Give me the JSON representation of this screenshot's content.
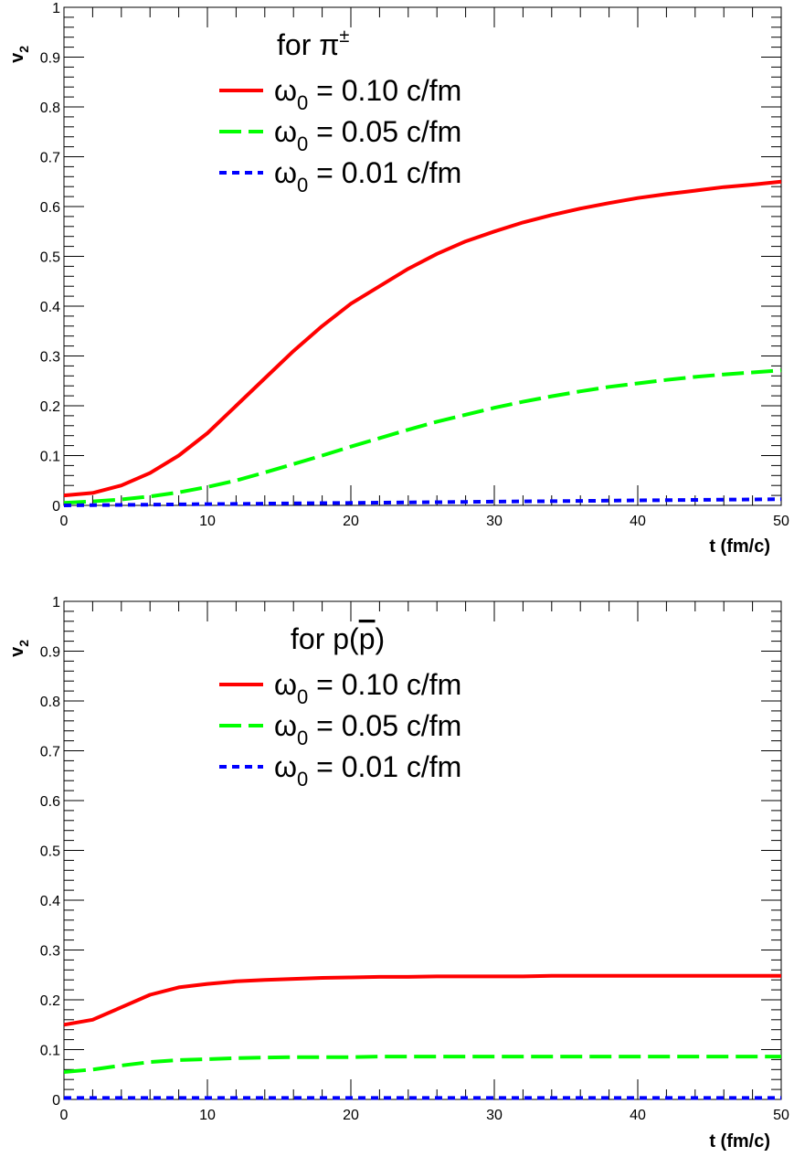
{
  "chart_data": [
    {
      "type": "line",
      "title": "",
      "xlabel": "t (fm/c)",
      "ylabel": "v",
      "ylabel_sub": "2",
      "xlim": [
        0,
        50
      ],
      "ylim": [
        0,
        1
      ],
      "x_ticks": [
        "0",
        "10",
        "20",
        "30",
        "40",
        "50"
      ],
      "y_ticks": [
        "0",
        "0.1",
        "0.2",
        "0.3",
        "0.4",
        "0.5",
        "0.6",
        "0.7",
        "0.8",
        "0.9",
        "1"
      ],
      "grid": false,
      "legend": {
        "header": "for π",
        "header_sup": "±",
        "header_bar": "",
        "position": "top-center"
      },
      "x": [
        0,
        2,
        4,
        6,
        8,
        10,
        12,
        14,
        16,
        18,
        20,
        22,
        24,
        26,
        28,
        30,
        32,
        34,
        36,
        38,
        40,
        42,
        44,
        46,
        48,
        50
      ],
      "series": [
        {
          "symbol": "ω",
          "sub": "0",
          "value_text": " = 0.10 c/fm",
          "color": "#ff0000",
          "style": "solid",
          "values": [
            0.02,
            0.025,
            0.04,
            0.065,
            0.1,
            0.145,
            0.2,
            0.255,
            0.31,
            0.36,
            0.405,
            0.44,
            0.475,
            0.505,
            0.53,
            0.55,
            0.568,
            0.583,
            0.596,
            0.607,
            0.617,
            0.625,
            0.632,
            0.639,
            0.644,
            0.65
          ]
        },
        {
          "symbol": "ω",
          "sub": "0",
          "value_text": " = 0.05 c/fm",
          "color": "#00ff00",
          "style": "dashed",
          "values": [
            0.005,
            0.008,
            0.012,
            0.018,
            0.026,
            0.037,
            0.05,
            0.066,
            0.083,
            0.1,
            0.118,
            0.135,
            0.152,
            0.168,
            0.182,
            0.196,
            0.208,
            0.219,
            0.229,
            0.238,
            0.245,
            0.252,
            0.258,
            0.263,
            0.267,
            0.271
          ]
        },
        {
          "symbol": "ω",
          "sub": "0",
          "value_text": " = 0.01 c/fm",
          "color": "#0000ff",
          "style": "dotted",
          "values": [
            0.0,
            0.0005,
            0.001,
            0.0015,
            0.002,
            0.0025,
            0.003,
            0.0035,
            0.004,
            0.0045,
            0.005,
            0.0055,
            0.006,
            0.0065,
            0.007,
            0.0075,
            0.008,
            0.0085,
            0.009,
            0.0095,
            0.01,
            0.0105,
            0.011,
            0.0115,
            0.012,
            0.0125
          ]
        }
      ]
    },
    {
      "type": "line",
      "title": "",
      "xlabel": "t (fm/c)",
      "ylabel": "v",
      "ylabel_sub": "2",
      "xlim": [
        0,
        50
      ],
      "ylim": [
        0,
        1
      ],
      "x_ticks": [
        "0",
        "10",
        "20",
        "30",
        "40",
        "50"
      ],
      "y_ticks": [
        "0",
        "0.1",
        "0.2",
        "0.3",
        "0.4",
        "0.5",
        "0.6",
        "0.7",
        "0.8",
        "0.9",
        "1"
      ],
      "grid": false,
      "legend": {
        "header": "for p(",
        "header_sup": "",
        "header_bar": "p",
        "header_tail": ")",
        "position": "top-center"
      },
      "x": [
        0,
        2,
        4,
        6,
        8,
        10,
        12,
        14,
        16,
        18,
        20,
        22,
        24,
        26,
        28,
        30,
        32,
        34,
        36,
        38,
        40,
        42,
        44,
        46,
        48,
        50
      ],
      "series": [
        {
          "symbol": "ω",
          "sub": "0",
          "value_text": " = 0.10 c/fm",
          "color": "#ff0000",
          "style": "solid",
          "values": [
            0.15,
            0.16,
            0.185,
            0.21,
            0.225,
            0.232,
            0.237,
            0.24,
            0.242,
            0.244,
            0.245,
            0.246,
            0.246,
            0.247,
            0.247,
            0.247,
            0.247,
            0.248,
            0.248,
            0.248,
            0.248,
            0.248,
            0.248,
            0.248,
            0.248,
            0.248
          ]
        },
        {
          "symbol": "ω",
          "sub": "0",
          "value_text": " = 0.05 c/fm",
          "color": "#00ff00",
          "style": "dashed",
          "values": [
            0.055,
            0.06,
            0.068,
            0.075,
            0.079,
            0.081,
            0.083,
            0.084,
            0.085,
            0.085,
            0.085,
            0.086,
            0.086,
            0.086,
            0.086,
            0.086,
            0.086,
            0.086,
            0.086,
            0.086,
            0.086,
            0.086,
            0.086,
            0.086,
            0.086,
            0.086
          ]
        },
        {
          "symbol": "ω",
          "sub": "0",
          "value_text": " = 0.01 c/fm",
          "color": "#0000ff",
          "style": "dotted",
          "values": [
            0.003,
            0.003,
            0.003,
            0.003,
            0.003,
            0.003,
            0.003,
            0.003,
            0.003,
            0.003,
            0.003,
            0.003,
            0.003,
            0.003,
            0.003,
            0.003,
            0.003,
            0.003,
            0.003,
            0.003,
            0.003,
            0.003,
            0.003,
            0.003,
            0.003,
            0.003
          ]
        }
      ]
    }
  ]
}
